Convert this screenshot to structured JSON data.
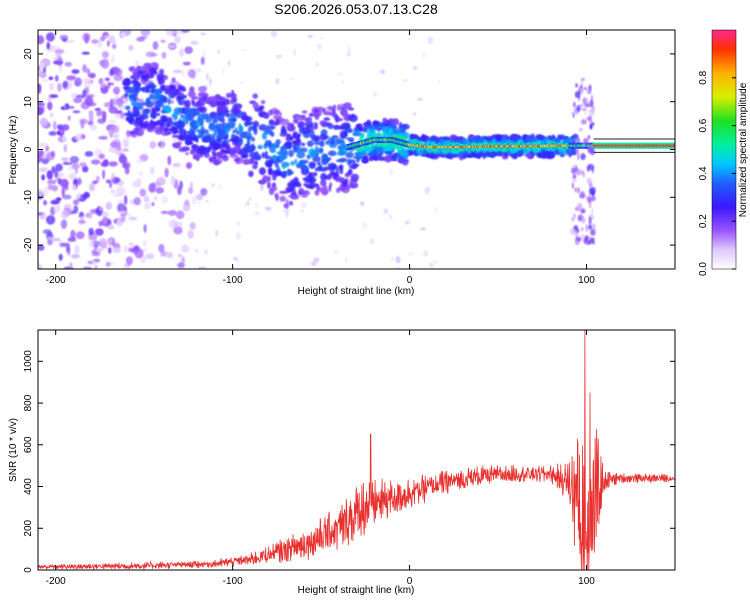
{
  "figure": {
    "title": "S206.2026.053.07.13.C28"
  },
  "chart_data": [
    {
      "type": "heatmap",
      "name": "spectrogram",
      "xlabel": "Height of straight line (km)",
      "ylabel": "Frequency (Hz)",
      "xlim": [
        -210,
        150
      ],
      "ylim": [
        -25,
        25
      ],
      "xticks": [
        -200,
        -100,
        0,
        100
      ],
      "yticks": [
        -20,
        -10,
        0,
        10,
        20
      ],
      "colorbar": {
        "label": "Normalized spectral amplitude",
        "range": [
          0.0,
          1.0
        ],
        "ticks": [
          "0.0",
          "0.2",
          "0.4",
          "0.6",
          "0.8"
        ]
      },
      "ridge": {
        "description": "dominant frequency ridge (x km, Hz)",
        "points": [
          [
            -155,
            10
          ],
          [
            -145,
            11
          ],
          [
            -130,
            7
          ],
          [
            -120,
            5
          ],
          [
            -110,
            4
          ],
          [
            -100,
            5
          ],
          [
            -90,
            3
          ],
          [
            -80,
            1
          ],
          [
            -70,
            -3
          ],
          [
            -60,
            -1
          ],
          [
            -50,
            0
          ],
          [
            -40,
            0
          ],
          [
            -30,
            1
          ],
          [
            -20,
            2
          ],
          [
            -10,
            2
          ],
          [
            0,
            1
          ],
          [
            10,
            0.5
          ],
          [
            30,
            0.5
          ],
          [
            50,
            0.7
          ],
          [
            70,
            0.7
          ],
          [
            90,
            0.8
          ],
          [
            105,
            0.8
          ],
          [
            150,
            0.8
          ]
        ]
      }
    },
    {
      "type": "line",
      "name": "snr",
      "xlabel": "Height of straight line (km)",
      "ylabel": "SNR (10 * v/v)",
      "xlim": [
        -210,
        150
      ],
      "ylim": [
        0,
        1150
      ],
      "xticks": [
        -200,
        -100,
        0,
        100
      ],
      "yticks": [
        0,
        200,
        400,
        600,
        800,
        1000
      ],
      "color": "#e8302e",
      "envelope": {
        "description": "approximate mean SNR level and oscillation amplitude by height",
        "x": [
          -210,
          -150,
          -110,
          -90,
          -60,
          -40,
          -26,
          -20,
          0,
          20,
          40,
          60,
          80,
          90,
          95,
          100,
          105,
          110,
          120,
          150
        ],
        "mean": [
          15,
          20,
          30,
          50,
          120,
          200,
          300,
          320,
          370,
          420,
          450,
          460,
          460,
          420,
          350,
          300,
          350,
          430,
          440,
          440
        ],
        "amp": [
          8,
          15,
          15,
          25,
          60,
          90,
          120,
          90,
          60,
          50,
          40,
          35,
          35,
          80,
          300,
          400,
          280,
          40,
          20,
          15
        ]
      },
      "peaks": [
        {
          "x": -22,
          "y": 650
        },
        {
          "x": 99,
          "y": 1150
        },
        {
          "x": 102,
          "y": 850
        }
      ]
    }
  ]
}
